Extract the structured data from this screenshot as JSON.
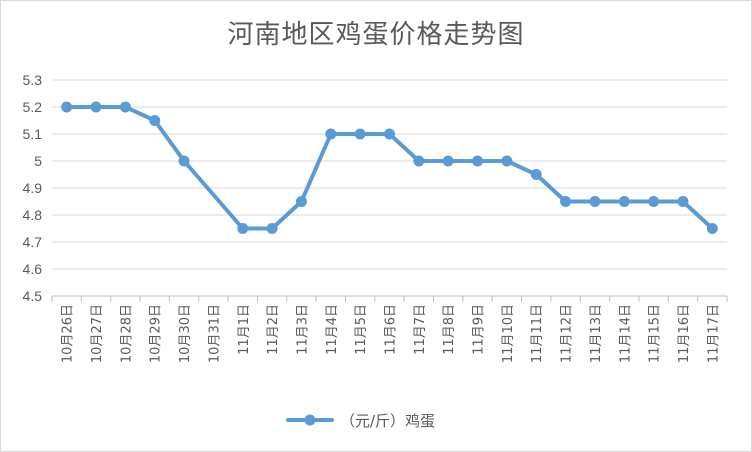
{
  "chart_data": {
    "type": "line",
    "title": "河南地区鸡蛋价格走势图",
    "xlabel": "",
    "ylabel": "",
    "ylim": [
      4.5,
      5.3
    ],
    "yticks": [
      "5.3",
      "5.2",
      "5.1",
      "5",
      "4.9",
      "4.8",
      "4.7",
      "4.6",
      "4.5"
    ],
    "grid": true,
    "legend_position": "bottom",
    "categories": [
      "10月26日",
      "10月27日",
      "10月28日",
      "10月29日",
      "10月30日",
      "10月31日",
      "11月1日",
      "11月2日",
      "11月3日",
      "11月4日",
      "11月5日",
      "11月6日",
      "11月7日",
      "11月8日",
      "11月9日",
      "11月10日",
      "11月11日",
      "11月12日",
      "11月13日",
      "11月14日",
      "11月15日",
      "11月16日",
      "11月17日"
    ],
    "series": [
      {
        "name": "（元/斤）鸡蛋",
        "color": "#5b9bd5",
        "values": [
          5.2,
          5.2,
          5.2,
          5.15,
          5.0,
          null,
          4.75,
          4.75,
          4.85,
          5.1,
          5.1,
          5.1,
          5.0,
          5.0,
          5.0,
          5.0,
          4.95,
          4.85,
          4.85,
          4.85,
          4.85,
          4.85,
          4.75
        ]
      }
    ]
  }
}
